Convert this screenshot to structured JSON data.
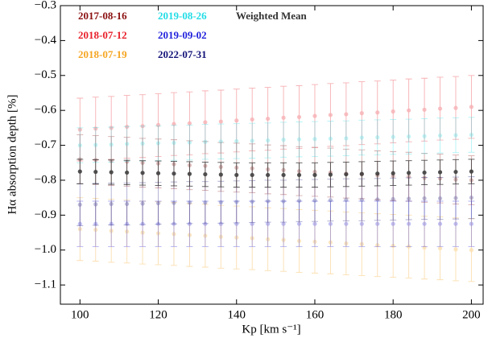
{
  "chart_data": {
    "type": "errorbar",
    "xlabel": "Kp [km s⁻¹]",
    "ylabel": "Hα absorption depth [%]",
    "xlim": [
      95,
      203
    ],
    "ylim": [
      -1.155,
      -0.3
    ],
    "xticks": [
      100,
      120,
      140,
      160,
      180,
      200
    ],
    "yticks": [
      {
        "value": -1.1,
        "label": "−1.1"
      },
      {
        "value": -1.0,
        "label": "−1.0"
      },
      {
        "value": -0.9,
        "label": "−0.9"
      },
      {
        "value": -0.8,
        "label": "−0.8"
      },
      {
        "value": -0.7,
        "label": "−0.7"
      },
      {
        "value": -0.6,
        "label": "−0.6"
      },
      {
        "value": -0.5,
        "label": "−0.5"
      },
      {
        "value": -0.4,
        "label": "−0.4"
      },
      {
        "value": -0.3,
        "label": "−0.3"
      }
    ],
    "x": [
      100,
      104,
      108,
      112,
      116,
      120,
      124,
      128,
      132,
      136,
      140,
      144,
      148,
      152,
      156,
      160,
      164,
      168,
      172,
      176,
      180,
      184,
      188,
      192,
      196,
      200
    ],
    "series": [
      {
        "name": "2017-08-16",
        "color": "#8b1010",
        "error": 0.07,
        "values": [
          -0.74,
          -0.742,
          -0.745,
          -0.747,
          -0.75,
          -0.752,
          -0.754,
          -0.757,
          -0.759,
          -0.762,
          -0.764,
          -0.766,
          -0.769,
          -0.771,
          -0.774,
          -0.776,
          -0.778,
          -0.781,
          -0.783,
          -0.786,
          -0.788,
          -0.79,
          -0.793,
          -0.795,
          -0.798,
          -0.8
        ]
      },
      {
        "name": "2018-07-12",
        "color": "#e8202a",
        "error": 0.09,
        "values": [
          -0.655,
          -0.652,
          -0.65,
          -0.647,
          -0.645,
          -0.642,
          -0.639,
          -0.637,
          -0.634,
          -0.632,
          -0.629,
          -0.626,
          -0.624,
          -0.621,
          -0.619,
          -0.616,
          -0.613,
          -0.611,
          -0.608,
          -0.606,
          -0.603,
          -0.6,
          -0.598,
          -0.595,
          -0.593,
          -0.59
        ]
      },
      {
        "name": "2018-07-19",
        "color": "#f5a623",
        "error": 0.09,
        "values": [
          -0.94,
          -0.942,
          -0.945,
          -0.947,
          -0.95,
          -0.952,
          -0.954,
          -0.957,
          -0.959,
          -0.962,
          -0.964,
          -0.966,
          -0.969,
          -0.971,
          -0.974,
          -0.976,
          -0.978,
          -0.981,
          -0.983,
          -0.986,
          -0.988,
          -0.99,
          -0.993,
          -0.995,
          -0.998,
          -1.0
        ]
      },
      {
        "name": "2019-08-26",
        "color": "#22dde6",
        "error": 0.05,
        "values": [
          -0.7,
          -0.699,
          -0.698,
          -0.696,
          -0.695,
          -0.694,
          -0.693,
          -0.692,
          -0.69,
          -0.689,
          -0.688,
          -0.687,
          -0.686,
          -0.684,
          -0.683,
          -0.682,
          -0.681,
          -0.68,
          -0.678,
          -0.677,
          -0.676,
          -0.675,
          -0.674,
          -0.672,
          -0.671,
          -0.67
        ]
      },
      {
        "name": "2019-09-02",
        "color": "#2222dd",
        "error": 0.065,
        "values": [
          -0.925,
          -0.925,
          -0.925,
          -0.925,
          -0.925,
          -0.925,
          -0.925,
          -0.925,
          -0.925,
          -0.925,
          -0.925,
          -0.925,
          -0.925,
          -0.925,
          -0.925,
          -0.925,
          -0.925,
          -0.925,
          -0.925,
          -0.925,
          -0.925,
          -0.925,
          -0.925,
          -0.925,
          -0.925,
          -0.925
        ]
      },
      {
        "name": "2022-07-31",
        "color": "#14147a",
        "error": 0.06,
        "values": [
          -0.87,
          -0.869,
          -0.868,
          -0.868,
          -0.867,
          -0.866,
          -0.865,
          -0.864,
          -0.864,
          -0.863,
          -0.862,
          -0.861,
          -0.86,
          -0.86,
          -0.859,
          -0.858,
          -0.857,
          -0.856,
          -0.856,
          -0.855,
          -0.854,
          -0.853,
          -0.852,
          -0.852,
          -0.851,
          -0.85
        ]
      },
      {
        "name": "Weighted Mean",
        "color": "#333333",
        "error": 0.035,
        "values": [
          -0.775,
          -0.776,
          -0.777,
          -0.778,
          -0.779,
          -0.78,
          -0.781,
          -0.782,
          -0.783,
          -0.784,
          -0.785,
          -0.785,
          -0.785,
          -0.785,
          -0.785,
          -0.785,
          -0.784,
          -0.783,
          -0.782,
          -0.781,
          -0.78,
          -0.779,
          -0.778,
          -0.777,
          -0.776,
          -0.775
        ]
      }
    ]
  }
}
